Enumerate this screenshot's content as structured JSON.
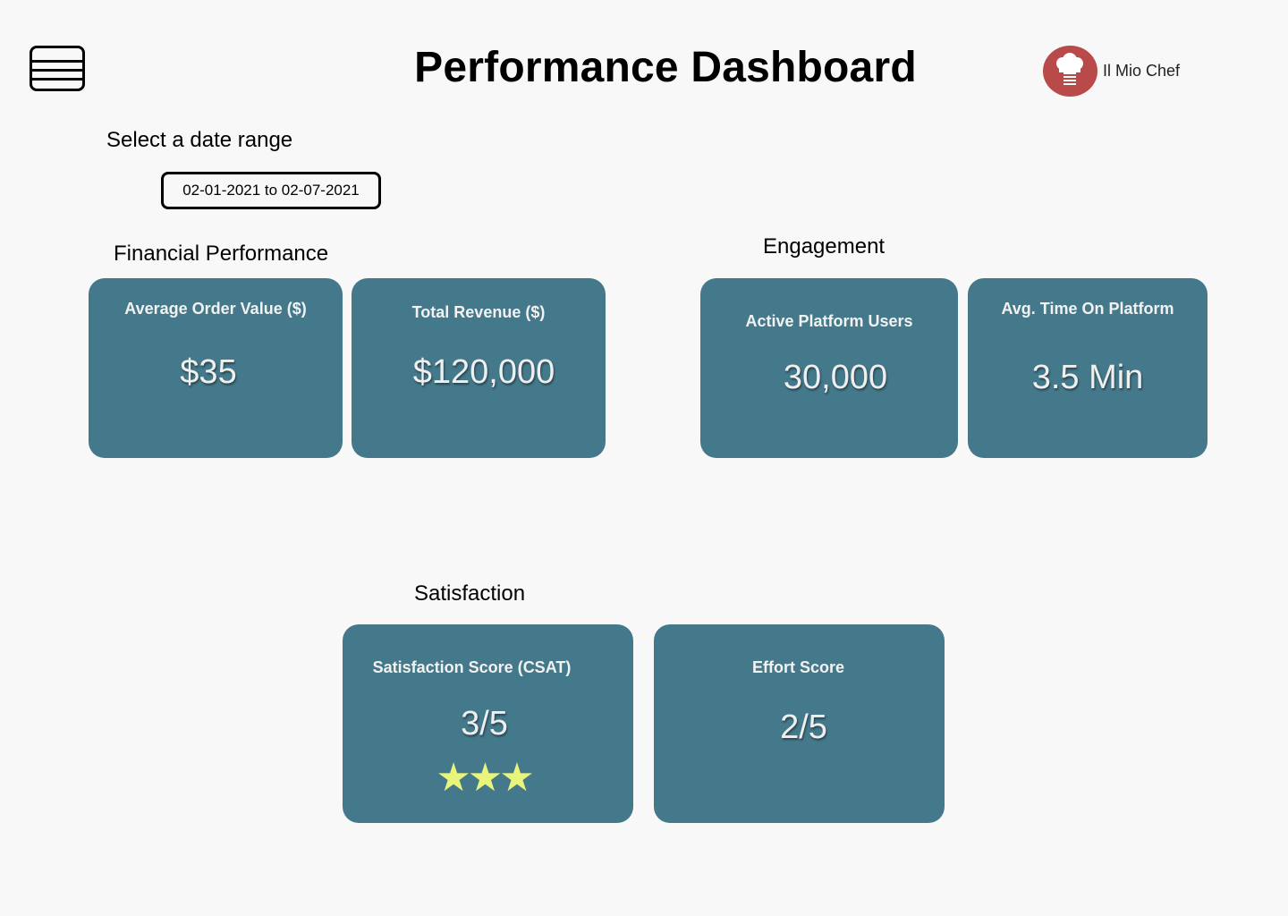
{
  "header": {
    "title": "Performance Dashboard",
    "menu_icon": "hamburger-menu-icon",
    "brand": {
      "name": "Il Mio Chef",
      "logo_icon": "chef-hat-icon",
      "logo_color": "#b94a4a"
    }
  },
  "date_filter": {
    "label": "Select a date range",
    "value": "02-01-2021 to 02-07-2021"
  },
  "colors": {
    "card_background": "#44798b",
    "page_background": "#f8f8f8",
    "star_color": "#e8f57a"
  },
  "sections": {
    "financial": {
      "title": "Financial Performance",
      "cards": [
        {
          "label": "Average Order Value ($)",
          "value": "$35"
        },
        {
          "label": "Total Revenue ($)",
          "value": "$120,000"
        }
      ]
    },
    "engagement": {
      "title": "Engagement",
      "cards": [
        {
          "label": "Active Platform Users",
          "value": "30,000"
        },
        {
          "label": "Avg. Time On Platform",
          "value": "3.5 Min"
        }
      ]
    },
    "satisfaction": {
      "title": "Satisfaction",
      "cards": [
        {
          "label": "Satisfaction Score (CSAT)",
          "value": "3/5",
          "stars": 3
        },
        {
          "label": "Effort Score",
          "value": "2/5"
        }
      ]
    }
  }
}
